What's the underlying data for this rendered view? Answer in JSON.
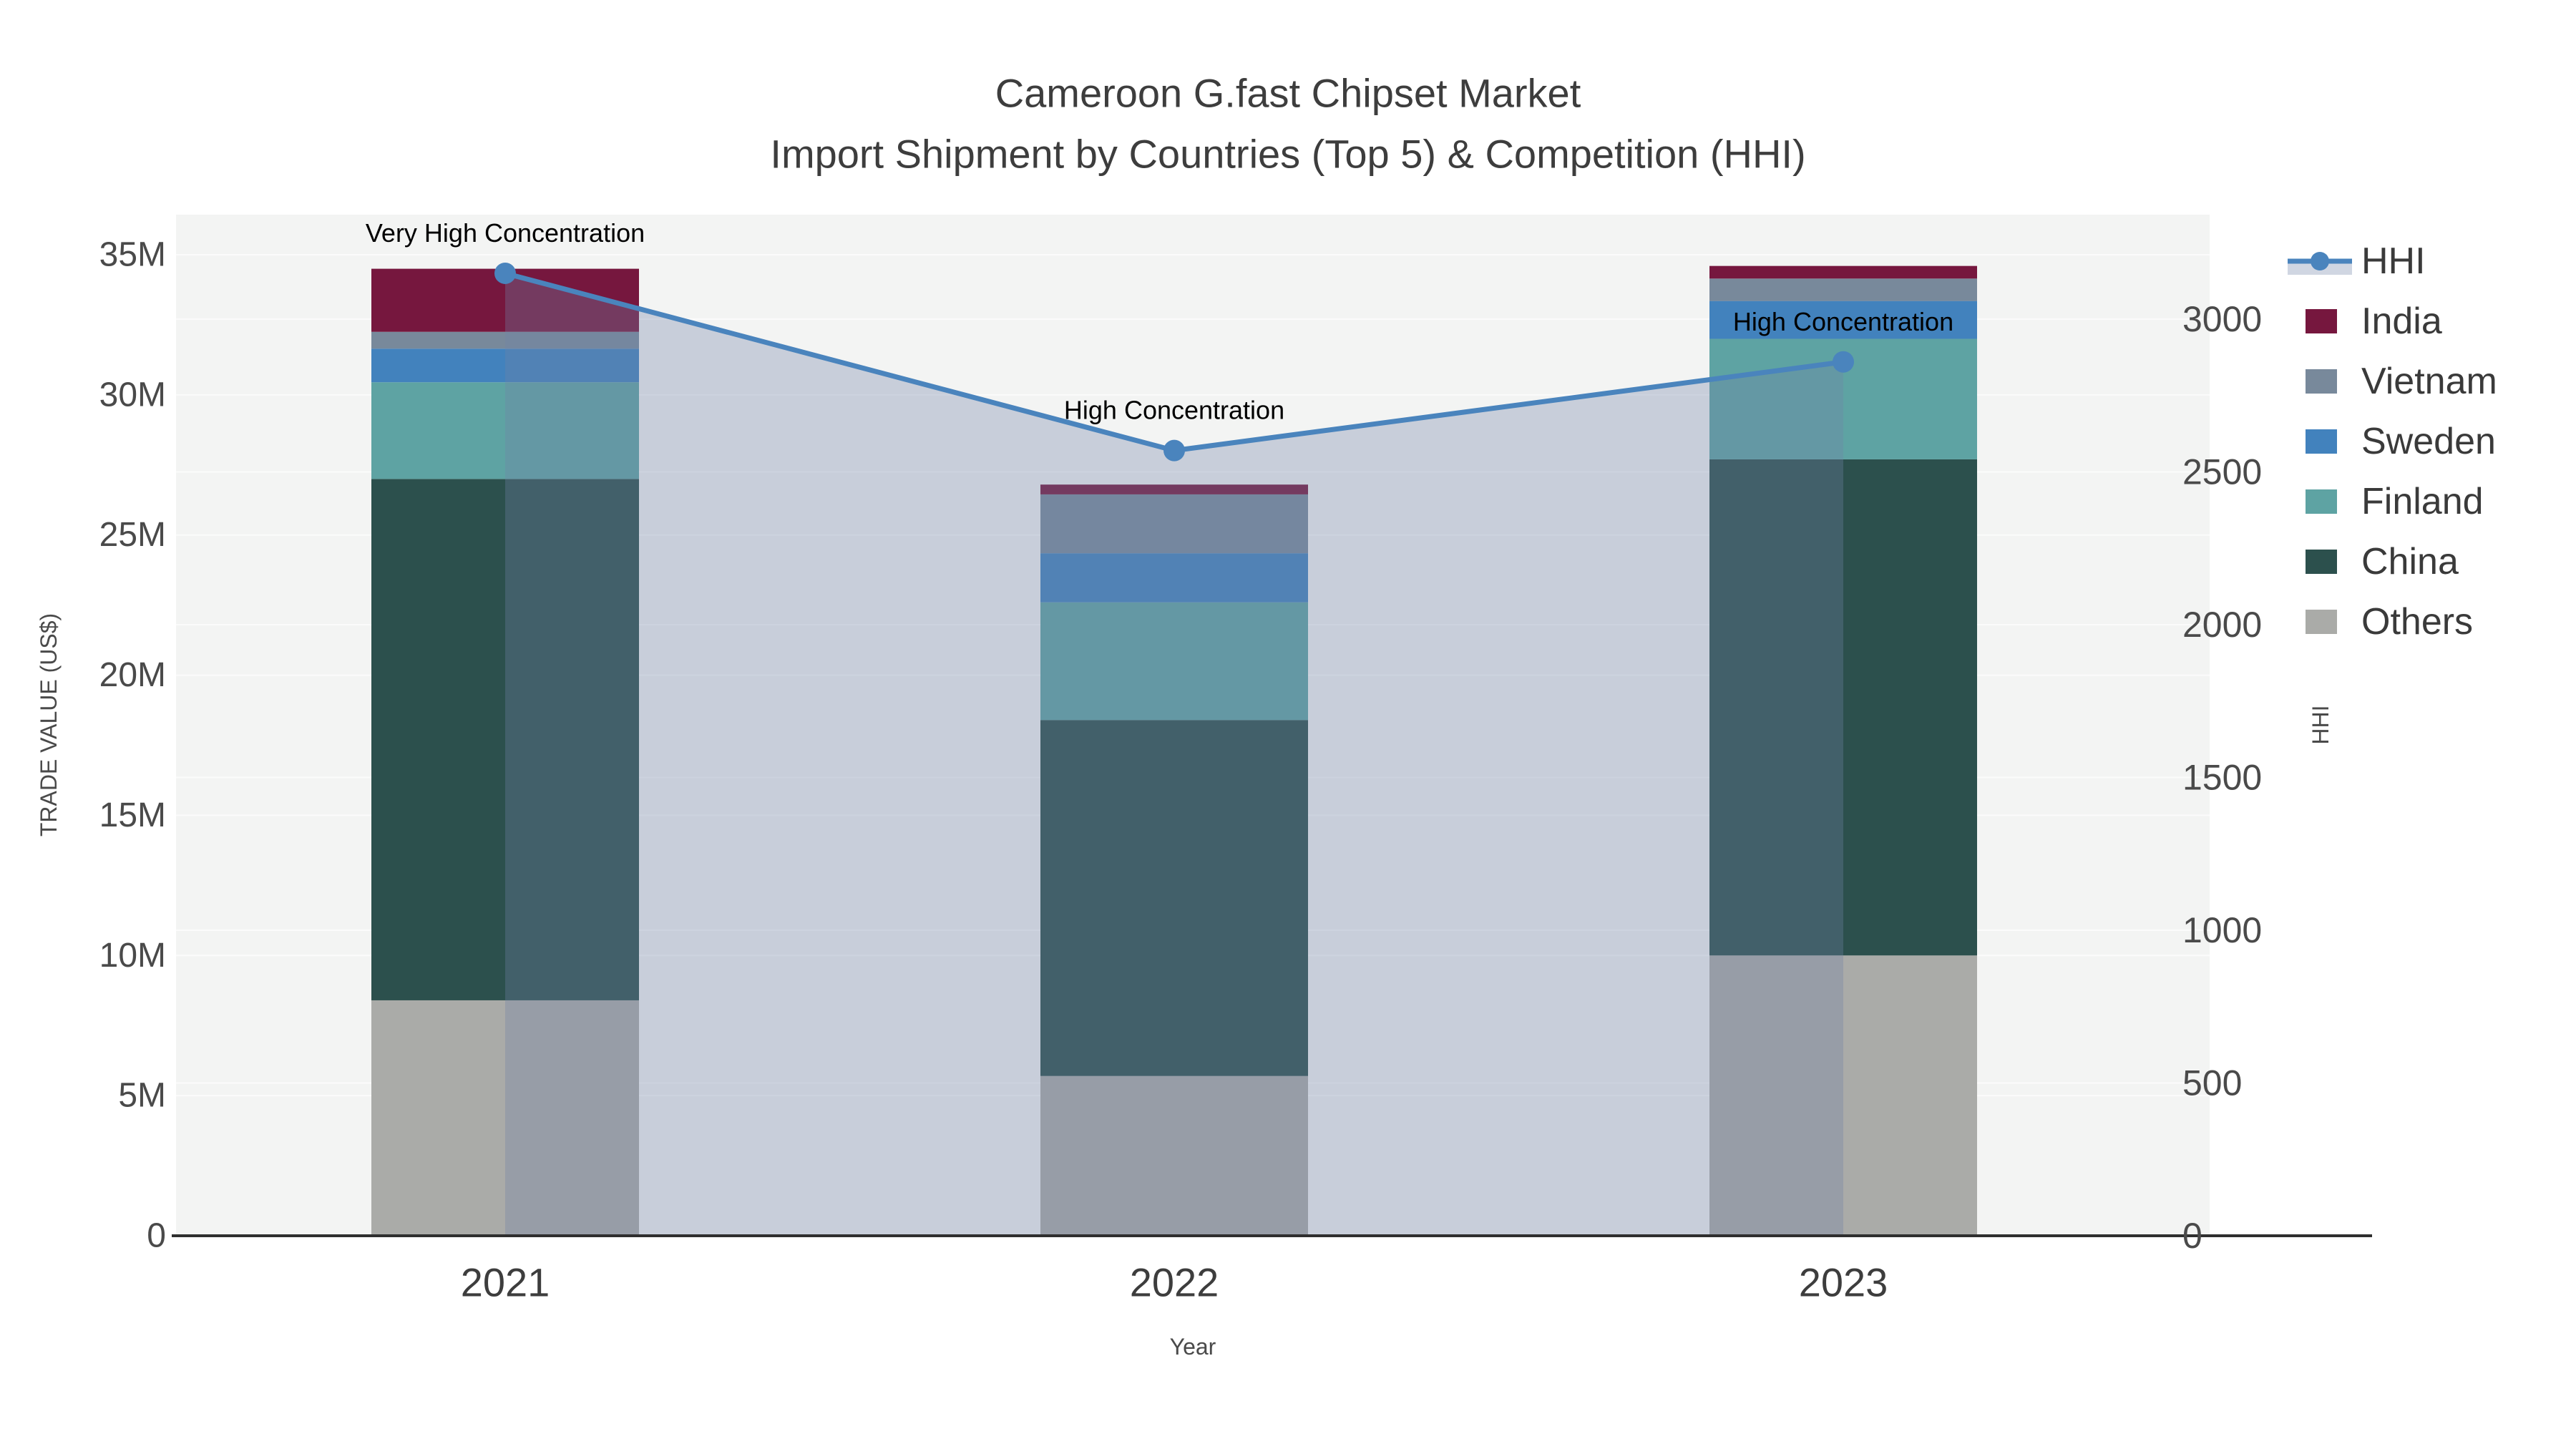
{
  "title": {
    "line1": "Cameroon G.fast Chipset Market",
    "line2": "Import Shipment by Countries (Top 5) & Competition (HHI)"
  },
  "axes": {
    "x": {
      "title": "Year",
      "tick_labels": [
        "2021",
        "2022",
        "2023"
      ]
    },
    "y_left": {
      "title": "TRADE VALUE (US$)",
      "tick_labels": [
        "0",
        "5M",
        "10M",
        "15M",
        "20M",
        "25M",
        "30M",
        "35M"
      ],
      "tick_values_millions": [
        0,
        5,
        10,
        15,
        20,
        25,
        30,
        35
      ]
    },
    "y_right": {
      "title": "HHI",
      "tick_labels": [
        "0",
        "500",
        "1000",
        "1500",
        "2000",
        "2500",
        "3000"
      ],
      "tick_values": [
        0,
        500,
        1000,
        1500,
        2000,
        2500,
        3000
      ]
    }
  },
  "legend": {
    "items": [
      {
        "label": "HHI",
        "type": "line",
        "color": "#4a84bd"
      },
      {
        "label": "India",
        "type": "swatch",
        "color": "#76173e"
      },
      {
        "label": "Vietnam",
        "type": "swatch",
        "color": "#78899b"
      },
      {
        "label": "Sweden",
        "type": "swatch",
        "color": "#4282bd"
      },
      {
        "label": "Finland",
        "type": "swatch",
        "color": "#5ea3a3"
      },
      {
        "label": "China",
        "type": "swatch",
        "color": "#2c504d"
      },
      {
        "label": "Others",
        "type": "swatch",
        "color": "#aaaba8"
      }
    ]
  },
  "chart_data": {
    "type": "bar",
    "subtype": "stacked-bars-with-line-overlay",
    "title": "Cameroon G.fast Chipset Market — Import Shipment by Countries (Top 5) & Competition (HHI)",
    "categories": [
      "2021",
      "2022",
      "2023"
    ],
    "unit": "US$ millions (left axis), HHI index (right axis)",
    "xlabel": "Year",
    "ylabel_left": "TRADE VALUE (US$)",
    "ylabel_right": "HHI",
    "y_left_range_millions": [
      0,
      36.4
    ],
    "y_right_range": [
      0,
      3342
    ],
    "grid": true,
    "legend_position": "right",
    "stack_order_bottom_to_top": [
      "Others",
      "China",
      "Finland",
      "Sweden",
      "Vietnam",
      "India"
    ],
    "series": [
      {
        "name": "Others",
        "axis": "left",
        "color": "#aaaba8",
        "values_millions": [
          8.4,
          5.7,
          10.0
        ]
      },
      {
        "name": "China",
        "axis": "left",
        "color": "#2c504d",
        "values_millions": [
          18.6,
          12.7,
          17.7
        ]
      },
      {
        "name": "Finland",
        "axis": "left",
        "color": "#5ea3a3",
        "values_millions": [
          3.45,
          4.2,
          4.3
        ]
      },
      {
        "name": "Sweden",
        "axis": "left",
        "color": "#4282bd",
        "values_millions": [
          1.2,
          1.75,
          1.35
        ]
      },
      {
        "name": "Vietnam",
        "axis": "left",
        "color": "#78899b",
        "values_millions": [
          0.6,
          2.1,
          0.8
        ]
      },
      {
        "name": "India",
        "axis": "left",
        "color": "#76173e",
        "values_millions": [
          2.25,
          0.35,
          0.45
        ]
      }
    ],
    "totals_millions": [
      34.5,
      26.8,
      34.6
    ],
    "line_series": {
      "name": "HHI",
      "axis": "right",
      "values": [
        3150,
        2570,
        2860
      ],
      "color": "#4a84bd",
      "marker": "circle",
      "area_fill": "rgba(112,130,166,0.33)"
    },
    "annotations": [
      {
        "category": "2021",
        "text": "Very High Concentration"
      },
      {
        "category": "2022",
        "text": "High Concentration"
      },
      {
        "category": "2023",
        "text": "High Concentration"
      }
    ]
  },
  "colors": {
    "figure_background": "#ffffff",
    "plot_background": "#f3f4f3",
    "gridline": "#fbfbfb",
    "axis_line": "#2f2f2f",
    "annotation_text": "#000000",
    "hhi_line": "#4a84bd",
    "hhi_area_fill": "rgba(112,130,166,0.33)",
    "legend_background": "#ffffff"
  }
}
